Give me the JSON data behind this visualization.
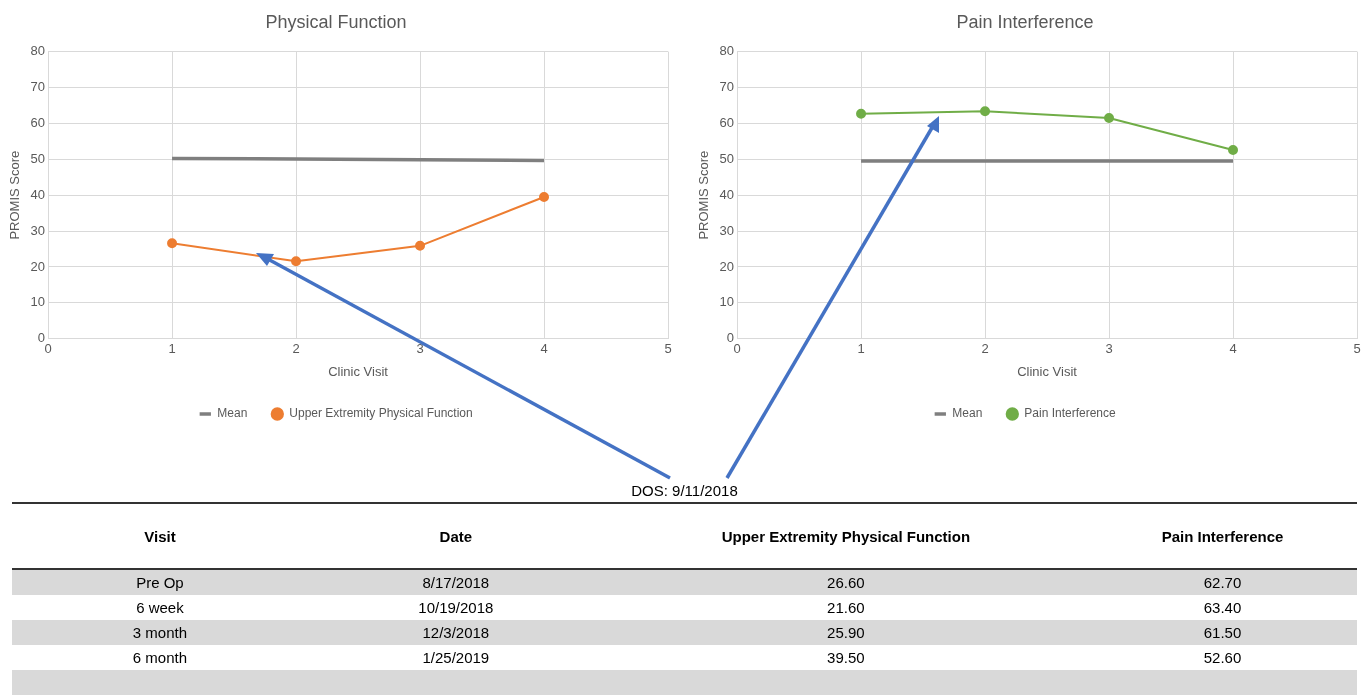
{
  "chart_data": [
    {
      "type": "line",
      "title": "Physical Function",
      "xlabel": "Clinic Visit",
      "ylabel": "PROMIS Score",
      "x": [
        1,
        2,
        3,
        4
      ],
      "xlim": [
        0,
        5
      ],
      "xticks": [
        0,
        1,
        2,
        3,
        4,
        5
      ],
      "ylim": [
        0,
        80
      ],
      "yticks": [
        0,
        10,
        20,
        30,
        40,
        50,
        60,
        70,
        80
      ],
      "grid": true,
      "legend": "bottom",
      "series": [
        {
          "name": "Mean",
          "color": "#7f7f7f",
          "values": [
            50.2,
            50.1,
            49.9,
            49.7
          ],
          "marker": "none"
        },
        {
          "name": "Upper Extremity Physical Function",
          "color": "#ed7d31",
          "values": [
            26.6,
            21.6,
            25.9,
            39.5
          ],
          "marker": "circle"
        }
      ]
    },
    {
      "type": "line",
      "title": "Pain Interference",
      "xlabel": "Clinic Visit",
      "ylabel": "PROMIS Score",
      "x": [
        1,
        2,
        3,
        4
      ],
      "xlim": [
        0,
        5
      ],
      "xticks": [
        0,
        1,
        2,
        3,
        4,
        5
      ],
      "ylim": [
        0,
        80
      ],
      "yticks": [
        0,
        10,
        20,
        30,
        40,
        50,
        60,
        70,
        80
      ],
      "grid": true,
      "legend": "bottom",
      "series": [
        {
          "name": "Mean",
          "color": "#7f7f7f",
          "values": [
            49.5,
            49.5,
            49.5,
            49.5
          ],
          "marker": "none"
        },
        {
          "name": "Pain Interference",
          "color": "#70ad47",
          "values": [
            62.7,
            63.4,
            61.5,
            52.6
          ],
          "marker": "circle"
        }
      ]
    },
    {
      "type": "other",
      "xlabel": "Visit",
      "categories": [
        "Pre Op",
        "6 week",
        "3 month",
        "6 month"
      ],
      "annotations": [
        "DOS: 9/11/2018"
      ],
      "series": [
        {
          "name": "Date",
          "values": [
            null,
            null,
            null,
            null
          ],
          "value_labels": [
            "8/17/2018",
            "10/19/2018",
            "12/3/2018",
            "1/25/2019"
          ]
        },
        {
          "name": "Upper Extremity Physical Function",
          "values": [
            26.6,
            21.6,
            25.9,
            39.5
          ],
          "value_labels": [
            "26.60",
            "21.60",
            "25.90",
            "39.50"
          ]
        },
        {
          "name": "Pain Interference",
          "values": [
            62.7,
            63.4,
            61.5,
            52.6
          ],
          "value_labels": [
            "62.70",
            "63.40",
            "61.50",
            "52.60"
          ]
        }
      ]
    }
  ]
}
